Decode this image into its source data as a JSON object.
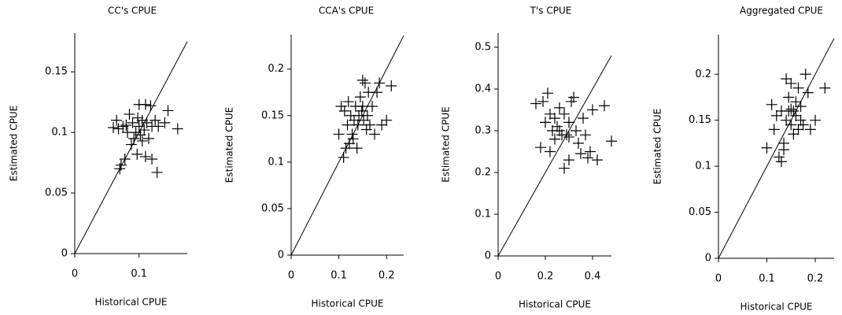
{
  "chart_data": [
    {
      "type": "scatter",
      "title": "CC's  CPUE",
      "xlabel": "Historical CPUE",
      "ylabel": "Estimated CPUE",
      "x": [
        0.065,
        0.07,
        0.072,
        0.075,
        0.078,
        0.08,
        0.082,
        0.085,
        0.088,
        0.09,
        0.092,
        0.095,
        0.097,
        0.1,
        0.1,
        0.102,
        0.105,
        0.105,
        0.108,
        0.11,
        0.11,
        0.112,
        0.115,
        0.118,
        0.12,
        0.12,
        0.125,
        0.128,
        0.13,
        0.14,
        0.145,
        0.16,
        0.06,
        0.068,
        0.098
      ],
      "y": [
        0.11,
        0.07,
        0.073,
        0.105,
        0.078,
        0.106,
        0.1,
        0.115,
        0.09,
        0.108,
        0.095,
        0.1,
        0.082,
        0.123,
        0.105,
        0.098,
        0.11,
        0.093,
        0.102,
        0.123,
        0.08,
        0.108,
        0.095,
        0.122,
        0.105,
        0.078,
        0.11,
        0.067,
        0.105,
        0.108,
        0.118,
        0.103,
        0.104,
        0.103,
        0.112
      ],
      "xlim": [
        0,
        0.175
      ],
      "ylim": [
        0,
        0.182
      ],
      "xticks": [
        0,
        0.1
      ],
      "yticks": [
        0,
        0.05,
        0.1,
        0.15
      ],
      "color": "#000000"
    },
    {
      "type": "scatter",
      "title": "CCA's  CPUE",
      "xlabel": "Historical CPUE",
      "ylabel": "Estimated CPUE",
      "x": [
        0.1,
        0.105,
        0.11,
        0.112,
        0.115,
        0.118,
        0.12,
        0.122,
        0.125,
        0.128,
        0.13,
        0.132,
        0.135,
        0.14,
        0.142,
        0.145,
        0.148,
        0.15,
        0.152,
        0.155,
        0.158,
        0.16,
        0.162,
        0.165,
        0.17,
        0.175,
        0.18,
        0.185,
        0.19,
        0.2,
        0.21,
        0.15,
        0.138
      ],
      "y": [
        0.13,
        0.16,
        0.105,
        0.155,
        0.115,
        0.14,
        0.165,
        0.12,
        0.15,
        0.13,
        0.125,
        0.145,
        0.16,
        0.14,
        0.15,
        0.17,
        0.155,
        0.188,
        0.145,
        0.185,
        0.135,
        0.15,
        0.175,
        0.14,
        0.16,
        0.13,
        0.175,
        0.185,
        0.14,
        0.145,
        0.182,
        0.16,
        0.115
      ],
      "xlim": [
        0,
        0.236
      ],
      "ylim": [
        0,
        0.237
      ],
      "xticks": [
        0,
        0.1,
        0.2
      ],
      "yticks": [
        0,
        0.05,
        0.1,
        0.15,
        0.2
      ],
      "color": "#000000"
    },
    {
      "type": "scatter",
      "title": "T's  CPUE",
      "xlabel": "Historical CPUE",
      "ylabel": "Estimated CPUE",
      "x": [
        0.16,
        0.18,
        0.19,
        0.2,
        0.21,
        0.22,
        0.22,
        0.23,
        0.24,
        0.24,
        0.25,
        0.26,
        0.27,
        0.28,
        0.28,
        0.29,
        0.3,
        0.3,
        0.31,
        0.32,
        0.33,
        0.34,
        0.35,
        0.36,
        0.37,
        0.38,
        0.39,
        0.4,
        0.42,
        0.45,
        0.48,
        0.26,
        0.3
      ],
      "y": [
        0.365,
        0.26,
        0.37,
        0.32,
        0.39,
        0.25,
        0.34,
        0.3,
        0.28,
        0.33,
        0.31,
        0.355,
        0.29,
        0.21,
        0.34,
        0.29,
        0.23,
        0.32,
        0.37,
        0.38,
        0.3,
        0.27,
        0.245,
        0.33,
        0.29,
        0.235,
        0.25,
        0.35,
        0.23,
        0.36,
        0.275,
        0.3,
        0.285
      ],
      "xlim": [
        0,
        0.48
      ],
      "ylim": [
        0,
        0.534
      ],
      "xticks": [
        0,
        0.2,
        0.4
      ],
      "yticks": [
        0,
        0.1,
        0.2,
        0.3,
        0.4,
        0.5
      ],
      "color": "#000000"
    },
    {
      "type": "scatter",
      "title": "Aggregated CPUE",
      "xlabel": "Historical CPUE",
      "ylabel": "Estimated CPUE",
      "x": [
        0.1,
        0.11,
        0.115,
        0.12,
        0.125,
        0.13,
        0.13,
        0.135,
        0.14,
        0.14,
        0.145,
        0.145,
        0.15,
        0.15,
        0.155,
        0.155,
        0.16,
        0.16,
        0.165,
        0.165,
        0.17,
        0.17,
        0.175,
        0.18,
        0.185,
        0.19,
        0.2,
        0.22,
        0.135,
        0.15
      ],
      "y": [
        0.12,
        0.167,
        0.14,
        0.155,
        0.11,
        0.16,
        0.105,
        0.125,
        0.15,
        0.195,
        0.16,
        0.175,
        0.145,
        0.19,
        0.16,
        0.135,
        0.155,
        0.17,
        0.14,
        0.185,
        0.15,
        0.165,
        0.145,
        0.2,
        0.18,
        0.14,
        0.15,
        0.185,
        0.118,
        0.162
      ],
      "xlim": [
        0,
        0.239
      ],
      "ylim": [
        0,
        0.243
      ],
      "xticks": [
        0,
        0.1,
        0.2
      ],
      "yticks": [
        0,
        0.05,
        0.1,
        0.15,
        0.2
      ],
      "color": "#000000"
    }
  ]
}
